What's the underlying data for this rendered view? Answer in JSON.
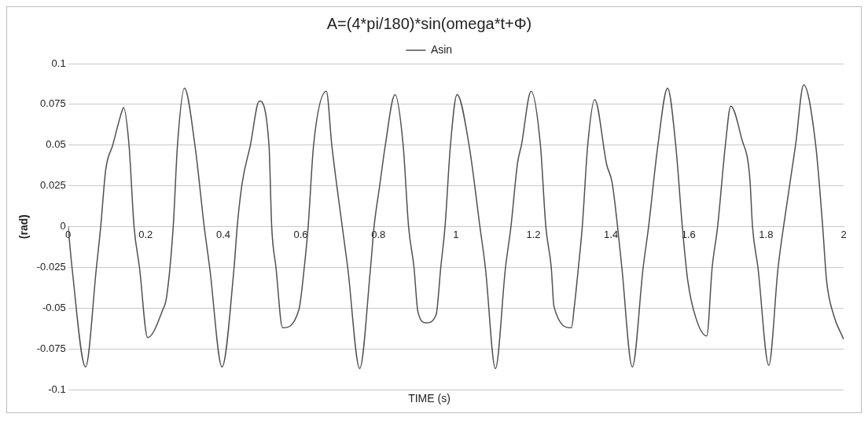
{
  "chart_data": {
    "type": "line",
    "title": "A=(4*pi/180)*sin(omega*t+Φ)",
    "xlabel": "TIME (s)",
    "ylabel": "(rad)",
    "series": [
      {
        "name": "Asin",
        "color": "#505050",
        "x": [
          0,
          0.01,
          0.045,
          0.073,
          0.084,
          0.097,
          0.115,
          0.139,
          0.143,
          0.157,
          0.17,
          0.184,
          0.205,
          0.244,
          0.254,
          0.271,
          0.282,
          0.3,
          0.327,
          0.351,
          0.365,
          0.397,
          0.428,
          0.436,
          0.449,
          0.47,
          0.493,
          0.518,
          0.525,
          0.536,
          0.553,
          0.595,
          0.609,
          0.619,
          0.633,
          0.666,
          0.68,
          0.707,
          0.721,
          0.752,
          0.78,
          0.789,
          0.804,
          0.818,
          0.843,
          0.864,
          0.878,
          0.892,
          0.902,
          0.923,
          0.949,
          0.961,
          0.972,
          0.986,
          1.003,
          1.034,
          1.062,
          1.076,
          1.102,
          1.128,
          1.142,
          1.159,
          1.169,
          1.194,
          1.218,
          1.232,
          1.246,
          1.253,
          1.298,
          1.305,
          1.316,
          1.326,
          1.34,
          1.358,
          1.389,
          1.403,
          1.417,
          1.428,
          1.455,
          1.483,
          1.497,
          1.521,
          1.546,
          1.567,
          1.584,
          1.598,
          1.619,
          1.647,
          1.661,
          1.675,
          1.695,
          1.709,
          1.737,
          1.758,
          1.765,
          1.779,
          1.807,
          1.831,
          1.845,
          1.876,
          1.897,
          1.928,
          1.946,
          1.956,
          1.974,
          2.0
        ],
        "values": [
          0,
          -0.025,
          -0.086,
          -0.025,
          0,
          0.035,
          0.05,
          0.071,
          0.073,
          0.05,
          0,
          -0.025,
          -0.068,
          -0.051,
          -0.043,
          0,
          0.05,
          0.085,
          0.05,
          0,
          -0.025,
          -0.086,
          -0.025,
          0,
          0.027,
          0.05,
          0.077,
          0.05,
          0,
          -0.025,
          -0.062,
          -0.051,
          -0.025,
          0,
          0.05,
          0.083,
          0.05,
          0,
          -0.025,
          -0.087,
          -0.025,
          0,
          0.026,
          0.05,
          0.081,
          0.05,
          0,
          -0.025,
          -0.052,
          -0.059,
          -0.054,
          -0.025,
          0,
          0.05,
          0.081,
          0.05,
          0,
          -0.025,
          -0.087,
          -0.025,
          0,
          0.039,
          0.05,
          0.083,
          0.05,
          0,
          -0.025,
          -0.049,
          -0.062,
          -0.05,
          -0.025,
          0,
          0.05,
          0.078,
          0.038,
          0.027,
          0,
          -0.025,
          -0.086,
          -0.025,
          0,
          0.05,
          0.085,
          0.05,
          0,
          -0.033,
          -0.056,
          -0.067,
          -0.025,
          0,
          0.05,
          0.074,
          0.054,
          0.03,
          0,
          -0.025,
          -0.085,
          -0.025,
          0,
          0.05,
          0.087,
          0.05,
          0,
          -0.033,
          -0.054,
          -0.069
        ]
      }
    ],
    "xlim": [
      0,
      2
    ],
    "xticks": [
      0,
      0.2,
      0.4,
      0.6,
      0.8,
      1,
      1.2,
      1.4,
      1.6,
      1.8,
      2
    ],
    "ylim": [
      -0.1,
      0.1
    ],
    "yticks": [
      -0.1,
      -0.075,
      -0.05,
      -0.025,
      0,
      0.025,
      0.05,
      0.075,
      0.1
    ],
    "grid": "y",
    "legend": "top",
    "marker": "none",
    "line_style": "solid"
  }
}
